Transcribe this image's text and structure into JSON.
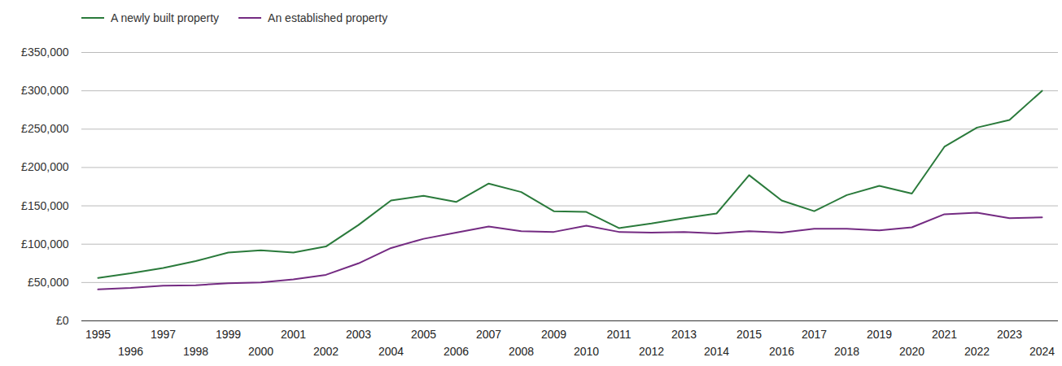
{
  "chart_data": {
    "type": "line",
    "x": [
      1995,
      1996,
      1997,
      1998,
      1999,
      2000,
      2001,
      2002,
      2003,
      2004,
      2005,
      2006,
      2007,
      2008,
      2009,
      2010,
      2011,
      2012,
      2013,
      2014,
      2015,
      2016,
      2017,
      2018,
      2019,
      2020,
      2021,
      2022,
      2023,
      2024
    ],
    "series": [
      {
        "name": "A newly built property",
        "color": "#2a7a3b",
        "values": [
          56000,
          62000,
          69000,
          78000,
          89000,
          92000,
          89000,
          97000,
          125000,
          157000,
          163000,
          155000,
          179000,
          168000,
          143000,
          142000,
          121000,
          127000,
          134000,
          140000,
          190000,
          157000,
          143000,
          164000,
          176000,
          166000,
          227000,
          252000,
          262000,
          300000
        ]
      },
      {
        "name": "An established property",
        "color": "#742b82",
        "values": [
          41000,
          43000,
          46000,
          46500,
          49000,
          50000,
          54000,
          60000,
          75000,
          95000,
          107000,
          115000,
          123000,
          117000,
          116000,
          124000,
          116000,
          115000,
          116000,
          114000,
          117000,
          115000,
          120000,
          120000,
          118000,
          122000,
          139000,
          141000,
          134000,
          135000
        ]
      }
    ],
    "xlim": [
      1994.5,
      2024.5
    ],
    "xticks": [
      1995,
      1996,
      1997,
      1998,
      1999,
      2000,
      2001,
      2002,
      2003,
      2004,
      2005,
      2006,
      2007,
      2008,
      2009,
      2010,
      2011,
      2012,
      2013,
      2014,
      2015,
      2016,
      2017,
      2018,
      2019,
      2020,
      2021,
      2022,
      2023,
      2024
    ],
    "ylim": [
      0,
      350000
    ],
    "yticks": [
      {
        "value": 0,
        "label": "£0"
      },
      {
        "value": 50000,
        "label": "£50,000"
      },
      {
        "value": 100000,
        "label": "£100,000"
      },
      {
        "value": 150000,
        "label": "£150,000"
      },
      {
        "value": 200000,
        "label": "£200,000"
      },
      {
        "value": 250000,
        "label": "£250,000"
      },
      {
        "value": 300000,
        "label": "£300,000"
      },
      {
        "value": 350000,
        "label": "£350,000"
      }
    ],
    "grid": true,
    "legend": "top-left"
  }
}
